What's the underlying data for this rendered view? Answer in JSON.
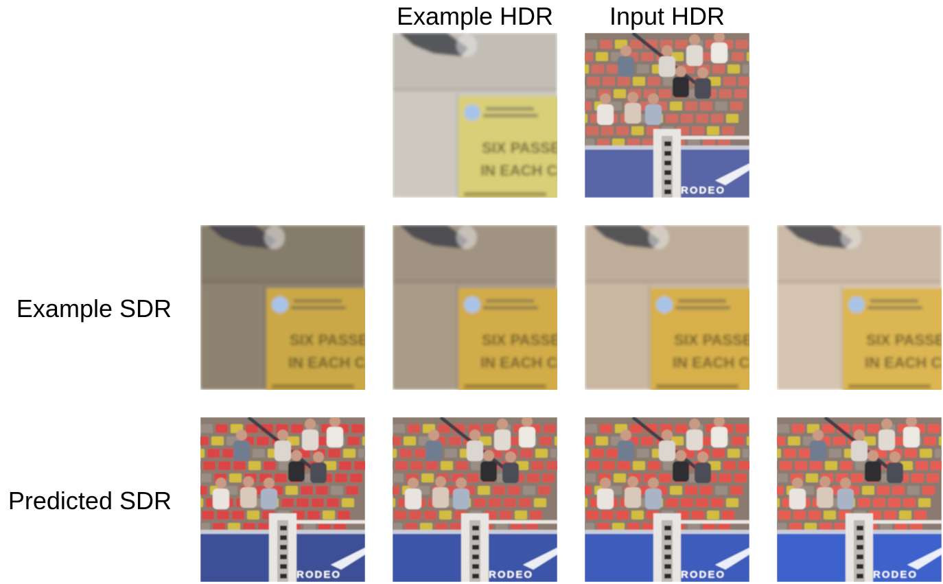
{
  "figure": {
    "column_titles": {
      "example_hdr": "Example HDR",
      "input_hdr": "Input HDR"
    },
    "row_labels": {
      "example_sdr": "Example SDR",
      "predicted_sdr": "Predicted SDR"
    },
    "sign_text": [
      "SIX PASSENGE",
      "IN EACH CAB"
    ],
    "board_text": "RODEO",
    "sdr_variants": [
      {
        "wall": "#8e8270",
        "board": "#caa846",
        "seat": "#e23f3f",
        "blue": "#3c4f96"
      },
      {
        "wall": "#a99b88",
        "board": "#d2ac49",
        "seat": "#e0524c",
        "blue": "#3d55a8"
      },
      {
        "wall": "#c9b7a2",
        "board": "#d7b04b",
        "seat": "#eb4f47",
        "blue": "#3e5cbc"
      },
      {
        "wall": "#d5c4b0",
        "board": "#dcb652",
        "seat": "#ee5a50",
        "blue": "#3c62cc"
      }
    ],
    "hdr_variant": {
      "wall": "#cdc9bf",
      "board": "#d9cf78",
      "seat": "#d86a5e",
      "blue": "#5865a6"
    }
  }
}
